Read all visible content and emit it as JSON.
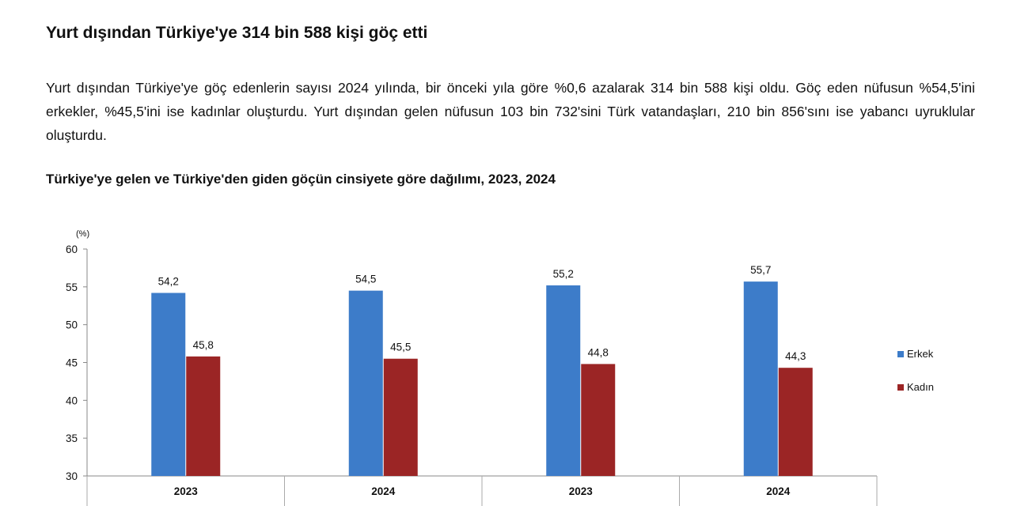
{
  "headline": "Yurt dışından Türkiye'ye 314 bin 588 kişi göç etti",
  "paragraph": "Yurt dışından Türkiye'ye göç edenlerin sayısı 2024 yılında, bir önceki yıla göre %0,6 azalarak 314 bin 588 kişi oldu. Göç eden nüfusun %54,5'ini erkekler, %45,5'ini ise kadınlar oluşturdu. Yurt dışından gelen nüfusun 103 bin 732'sini Türk vatandaşları, 210 bin 856'sını ise yabancı uyruklular oluşturdu.",
  "chart_data": {
    "type": "bar",
    "title": "Türkiye'ye gelen ve Türkiye'den giden göçün cinsiyete göre dağılımı, 2023, 2024",
    "ylabel": "(%)",
    "xlabel": "",
    "ylim": [
      30,
      60
    ],
    "yticks": [
      30,
      35,
      40,
      45,
      50,
      55,
      60
    ],
    "grid": false,
    "legend_position": "right",
    "categories": [
      "2023",
      "2024",
      "2023",
      "2024"
    ],
    "series": [
      {
        "name": "Erkek",
        "color": "#3d7cc9",
        "values": [
          54.2,
          54.5,
          55.2,
          55.7
        ],
        "labels": [
          "54,2",
          "54,5",
          "55,2",
          "55,7"
        ]
      },
      {
        "name": "Kadın",
        "color": "#9b2525",
        "values": [
          45.8,
          45.5,
          44.8,
          44.3
        ],
        "labels": [
          "45,8",
          "45,5",
          "44,8",
          "44,3"
        ]
      }
    ]
  }
}
